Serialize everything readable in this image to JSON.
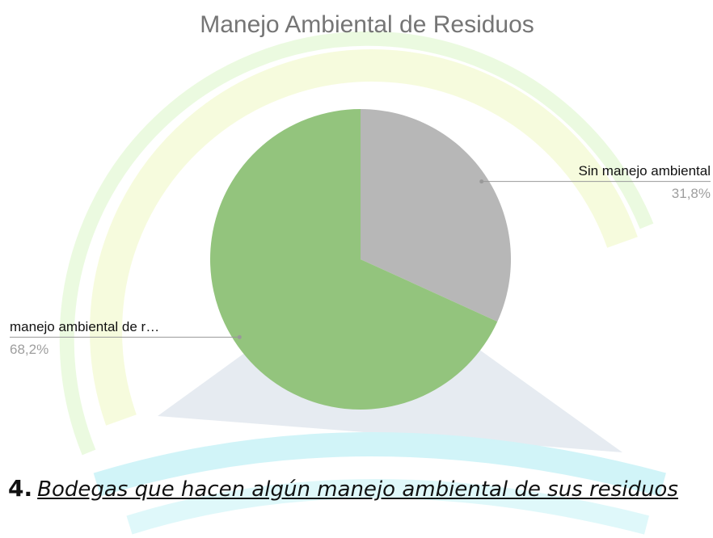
{
  "chart_data": {
    "type": "pie",
    "title": "Manejo Ambiental de Residuos",
    "categories": [
      "Sin manejo ambiental",
      "manejo ambiental de r…"
    ],
    "values": [
      31.8,
      68.2
    ],
    "value_labels": [
      "31,8%",
      "68,2%"
    ],
    "colors": [
      "#b7b7b7",
      "#93c47d"
    ]
  },
  "caption": {
    "number": "4.",
    "text": "Bodegas que hacen algún manejo ambiental de sus residuos"
  }
}
